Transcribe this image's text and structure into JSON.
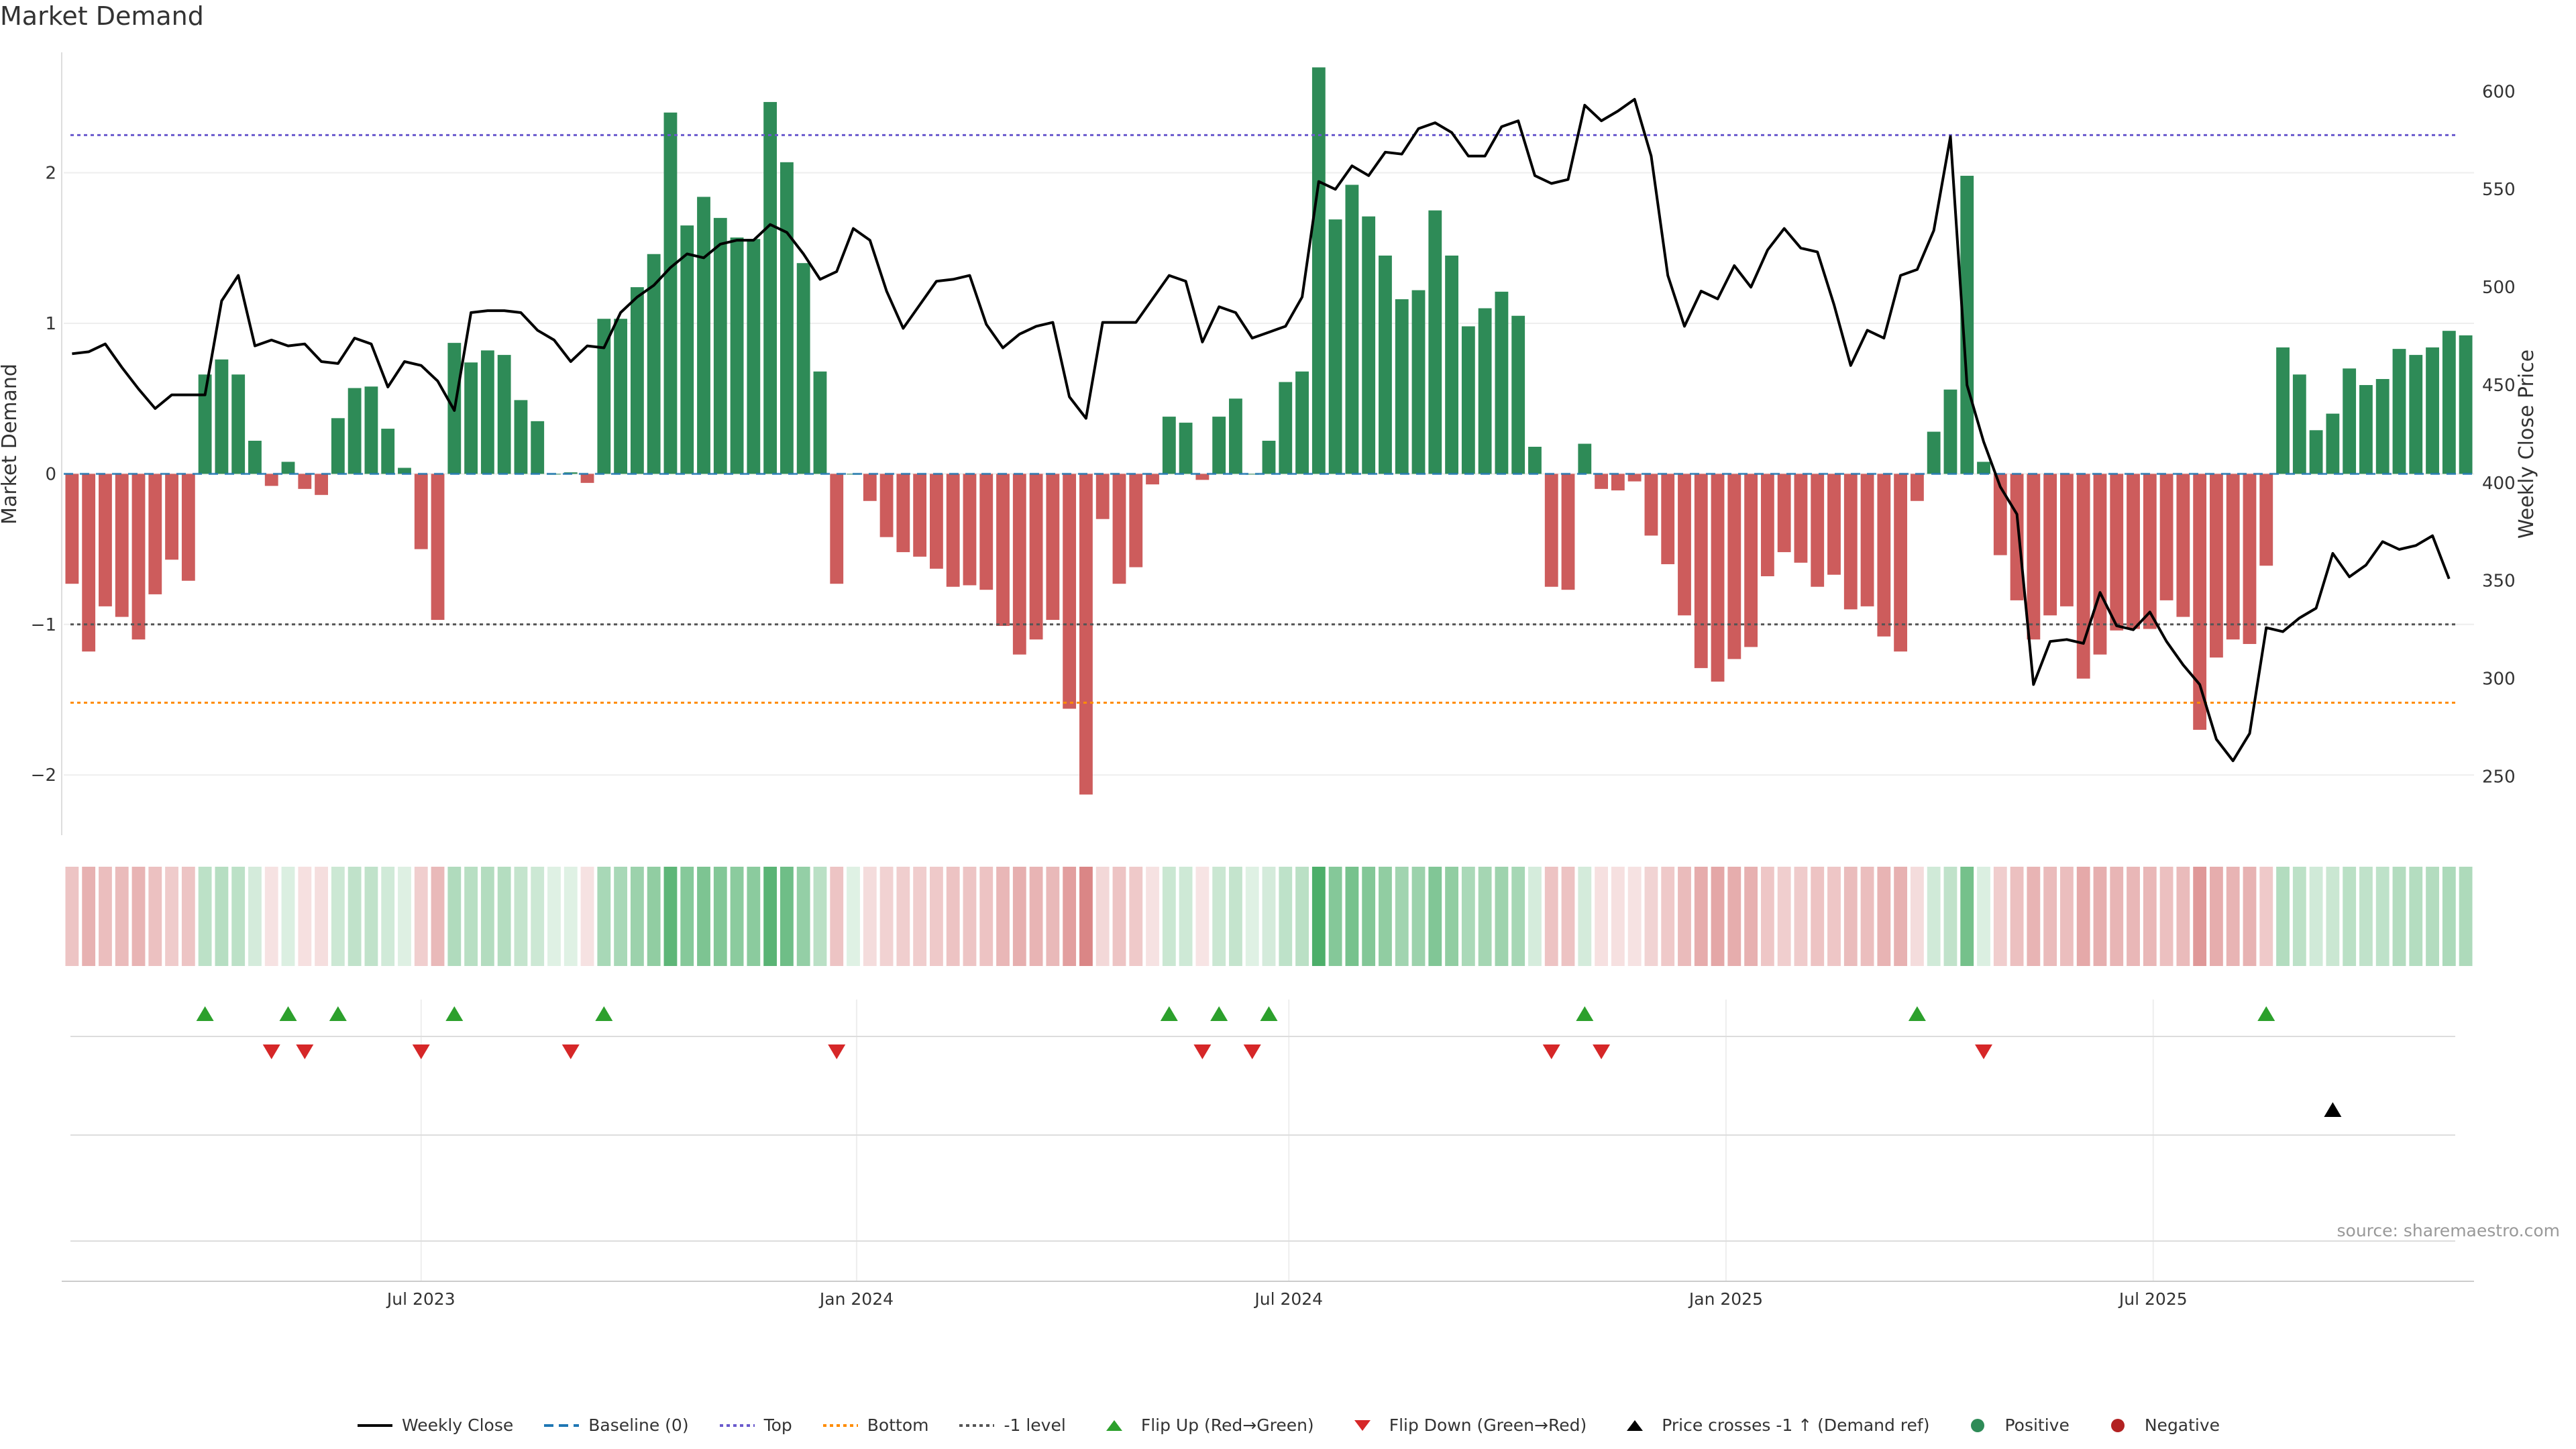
{
  "title": "Market Demand",
  "source": "source: sharemaestro.com",
  "colors": {
    "positive": "#2e8b57",
    "negative": "#cd5c5c",
    "price": "#000000",
    "top_line": "#6a5acd",
    "bottom_line": "#ff8c00",
    "minus1_line": "#555555",
    "baseline": "#1f77b4",
    "flip_up": "#2ca02c",
    "flip_down": "#d62728"
  },
  "chart_data": {
    "type": "bar",
    "title": "Market Demand",
    "ylabel": "Market Demand",
    "y2label": "Weekly Close Price",
    "ylim": [
      -2.4,
      2.8
    ],
    "y2lim": [
      220,
      620
    ],
    "yticks": [
      "2",
      "1",
      "0",
      "−1",
      "−2"
    ],
    "ytick_values": [
      2,
      1,
      0,
      -1,
      -2
    ],
    "y2ticks": [
      "600",
      "550",
      "500",
      "450",
      "400",
      "350",
      "300",
      "250"
    ],
    "y2tick_values": [
      600,
      550,
      500,
      450,
      400,
      350,
      300,
      250
    ],
    "xtick_labels": [
      "Jul 2023",
      "Jan 2024",
      "Jul 2024",
      "Jan 2025",
      "Jul 2025"
    ],
    "xtick_index": [
      21.5,
      47.7,
      73.7,
      100,
      125.7
    ],
    "reference_levels": {
      "top": 2.25,
      "bottom": -1.52,
      "minus_one": -1.0,
      "baseline": 0
    },
    "demand": [
      -0.73,
      -1.18,
      -0.88,
      -0.95,
      -1.1,
      -0.8,
      -0.57,
      -0.71,
      0.66,
      0.76,
      0.66,
      0.22,
      -0.08,
      0.08,
      -0.1,
      -0.14,
      0.37,
      0.57,
      0.58,
      0.3,
      0.04,
      -0.5,
      -0.97,
      0.87,
      0.74,
      0.82,
      0.79,
      0.49,
      0.35,
      0,
      0.01,
      -0.06,
      1.03,
      1.03,
      1.24,
      1.46,
      2.4,
      1.65,
      1.84,
      1.7,
      1.57,
      1.56,
      2.47,
      2.07,
      1.4,
      0.68,
      -0.73,
      0,
      -0.18,
      -0.42,
      -0.52,
      -0.55,
      -0.63,
      -0.75,
      -0.74,
      -0.77,
      -1.01,
      -1.2,
      -1.1,
      -0.97,
      -1.56,
      -2.13,
      -0.3,
      -0.73,
      -0.62,
      -0.07,
      0.38,
      0.34,
      -0.04,
      0.38,
      0.5,
      0,
      0.22,
      0.61,
      0.68,
      2.7,
      1.69,
      1.92,
      1.71,
      1.45,
      1.16,
      1.22,
      1.75,
      1.45,
      0.98,
      1.1,
      1.21,
      1.05,
      0.18,
      -0.75,
      -0.77,
      0.2,
      -0.1,
      -0.11,
      -0.05,
      -0.41,
      -0.6,
      -0.94,
      -1.29,
      -1.38,
      -1.23,
      -1.15,
      -0.68,
      -0.52,
      -0.59,
      -0.75,
      -0.67,
      -0.9,
      -0.88,
      -1.08,
      -1.18,
      -0.18,
      0.28,
      0.56,
      1.98,
      0.08,
      -0.54,
      -0.84,
      -1.1,
      -0.94,
      -0.88,
      -1.36,
      -1.2,
      -1.04,
      -1.03,
      -1.03,
      -0.84,
      -0.95,
      -1.7,
      -1.22,
      -1.1,
      -1.13,
      -0.61,
      0.84,
      0.66,
      0.29,
      0.4,
      0.7,
      0.59,
      0.63,
      0.83,
      0.79,
      0.84,
      0.95,
      0.92
    ],
    "weekly_close": [
      466,
      467,
      471,
      459,
      448,
      438,
      445,
      445,
      445,
      493,
      506,
      470,
      473,
      470,
      471,
      462,
      461,
      474,
      471,
      449,
      462,
      460,
      452,
      437,
      487,
      488,
      488,
      487,
      478,
      473,
      462,
      470,
      469,
      487,
      495,
      501,
      510,
      517,
      515,
      522,
      524,
      524,
      532,
      528,
      517,
      504,
      508,
      530,
      524,
      498,
      479,
      491,
      503,
      504,
      506,
      481,
      469,
      476,
      480,
      482,
      444,
      433,
      482,
      482,
      482,
      494,
      506,
      503,
      472,
      490,
      487,
      474,
      477,
      480,
      495,
      554,
      550,
      562,
      557,
      569,
      568,
      581,
      584,
      579,
      567,
      567,
      582,
      585,
      557,
      553,
      555,
      593,
      585,
      590,
      596,
      567,
      506,
      480,
      498,
      494,
      511,
      500,
      519,
      530,
      520,
      518,
      491,
      460,
      478,
      474,
      506,
      509,
      529,
      577,
      450,
      421,
      398,
      384,
      297,
      319,
      320,
      318,
      344,
      327,
      325,
      334,
      319,
      307,
      297,
      269,
      258,
      272,
      326,
      324,
      331,
      336,
      364,
      352,
      358,
      370,
      366,
      368,
      373,
      351
    ],
    "flip_up_index": [
      8,
      13,
      16,
      23,
      32,
      66,
      69,
      72,
      91,
      111,
      132
    ],
    "flip_down_index": [
      12,
      14,
      21,
      30,
      46,
      68,
      71,
      89,
      92,
      115
    ],
    "price_cross_index": [
      136
    ],
    "legend": [
      {
        "label": "Weekly Close",
        "kind": "line",
        "color": "#000000"
      },
      {
        "label": "Baseline (0)",
        "kind": "dashed",
        "color": "#1f77b4"
      },
      {
        "label": "Top",
        "kind": "dotted",
        "color": "#6a5acd"
      },
      {
        "label": "Bottom",
        "kind": "dotted",
        "color": "#ff8c00"
      },
      {
        "label": "-1 level",
        "kind": "dotted",
        "color": "#555555"
      },
      {
        "label": "Flip Up (Red→Green)",
        "kind": "tri-up",
        "color": "#2ca02c"
      },
      {
        "label": "Flip Down (Green→Red)",
        "kind": "tri-down",
        "color": "#d62728"
      },
      {
        "label": "Price crosses -1 ↑ (Demand ref)",
        "kind": "tri-up",
        "color": "#000000"
      },
      {
        "label": "Positive",
        "kind": "dot",
        "color": "#2e8b57"
      },
      {
        "label": "Negative",
        "kind": "dot",
        "color": "#b22222"
      }
    ]
  }
}
